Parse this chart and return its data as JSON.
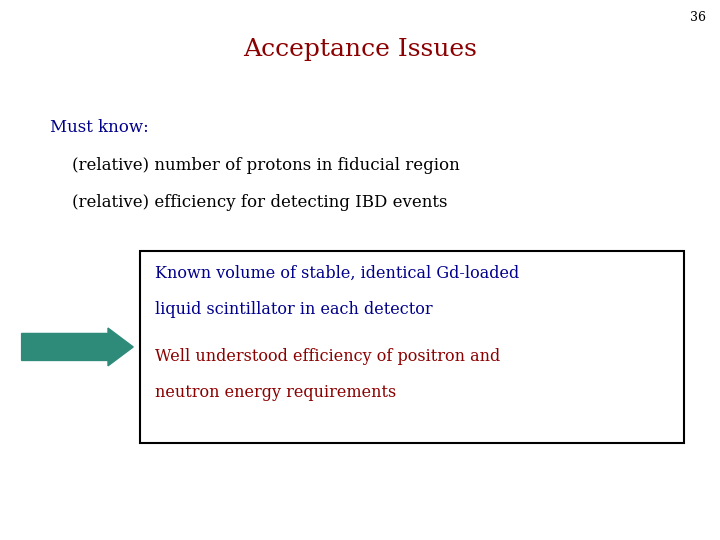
{
  "slide_number": "36",
  "title": "Acceptance Issues",
  "title_color": "#8B0000",
  "slide_number_color": "#000000",
  "must_know_label": "Must know:",
  "must_know_color": "#00008B",
  "bullet1": "(relative) number of protons in fiducial region",
  "bullet2": "(relative) efficiency for detecting IBD events",
  "bullet_color": "#000000",
  "box_text1_line1": "Known volume of stable, identical Gd-loaded",
  "box_text1_line2": "liquid scintillator in each detector",
  "box_text1_color": "#00008B",
  "box_text2_line1": "Well understood efficiency of positron and",
  "box_text2_line2": "neutron energy requirements",
  "box_text2_color": "#8B0000",
  "arrow_color": "#2E8B7A",
  "box_edge_color": "#000000",
  "background_color": "#FFFFFF"
}
